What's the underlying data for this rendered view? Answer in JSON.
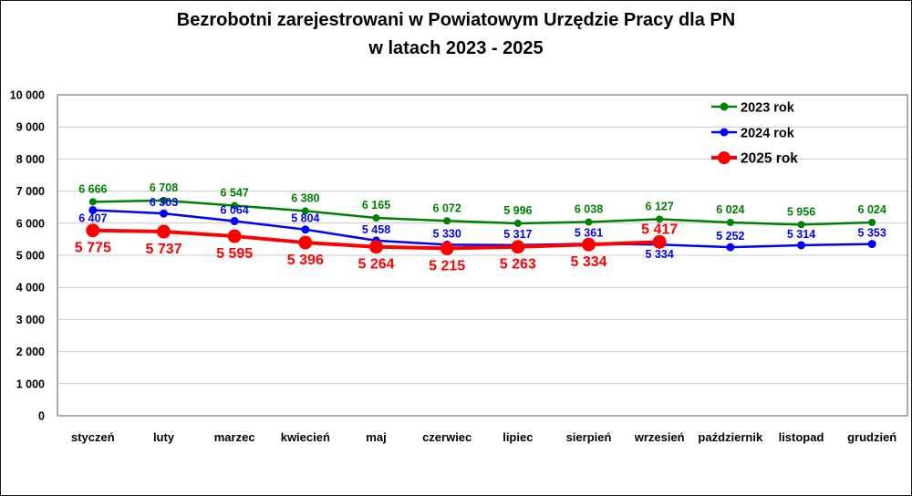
{
  "title": {
    "line1": "Bezrobotni zarejestrowani w Powiatowym Urzędzie Pracy dla PN",
    "line2": "w latach 2023 - 2025"
  },
  "chart_data": {
    "type": "line",
    "title": "Bezrobotni zarejestrowani w Powiatowym Urzędzie Pracy dla PN w latach 2023 - 2025",
    "categories": [
      "styczeń",
      "luty",
      "marzec",
      "kwiecień",
      "maj",
      "czerwiec",
      "lipiec",
      "sierpień",
      "wrzesień",
      "październik",
      "listopad",
      "grudzień"
    ],
    "series": [
      {
        "name": "2023 rok",
        "color": "#008000",
        "values": [
          6666,
          6708,
          6547,
          6380,
          6165,
          6072,
          5996,
          6038,
          6127,
          6024,
          5956,
          6024
        ],
        "label_positions": [
          "above",
          "above",
          "above",
          "above",
          "above",
          "above",
          "above",
          "above",
          "above",
          "above",
          "above",
          "above"
        ]
      },
      {
        "name": "2024 rok",
        "color": "#0000ff",
        "values": [
          6407,
          6303,
          6064,
          5804,
          5458,
          5330,
          5317,
          5361,
          5334,
          5252,
          5314,
          5353
        ],
        "label_positions": [
          "below",
          "above",
          "above",
          "above",
          "above",
          "above",
          "above",
          "above",
          "below",
          "above",
          "above",
          "above"
        ]
      },
      {
        "name": "2025 rok",
        "color": "#ff0000",
        "values": [
          5775,
          5737,
          5595,
          5396,
          5264,
          5215,
          5263,
          5334,
          5417
        ],
        "label_positions": [
          "below",
          "below",
          "below",
          "below",
          "below",
          "below",
          "below",
          "below",
          "above"
        ]
      }
    ],
    "xlabel": "",
    "ylabel": "",
    "ylim": [
      0,
      10000
    ],
    "y_step": 1000,
    "y_tick_labels": [
      "0",
      "1 000",
      "2 000",
      "3 000",
      "4 000",
      "5 000",
      "6 000",
      "7 000",
      "8 000",
      "9 000",
      "10 000"
    ],
    "grid": true,
    "data_labels": true,
    "number_format": "space-thousands",
    "legend": {
      "position": "top-right",
      "entries": [
        "2023 rok",
        "2024 rok",
        "2025 rok"
      ]
    },
    "colors": {
      "plot_border": "#808080",
      "gridline": "#c9c9c9",
      "axis_text": "#000000",
      "background": "#ffffff"
    }
  }
}
